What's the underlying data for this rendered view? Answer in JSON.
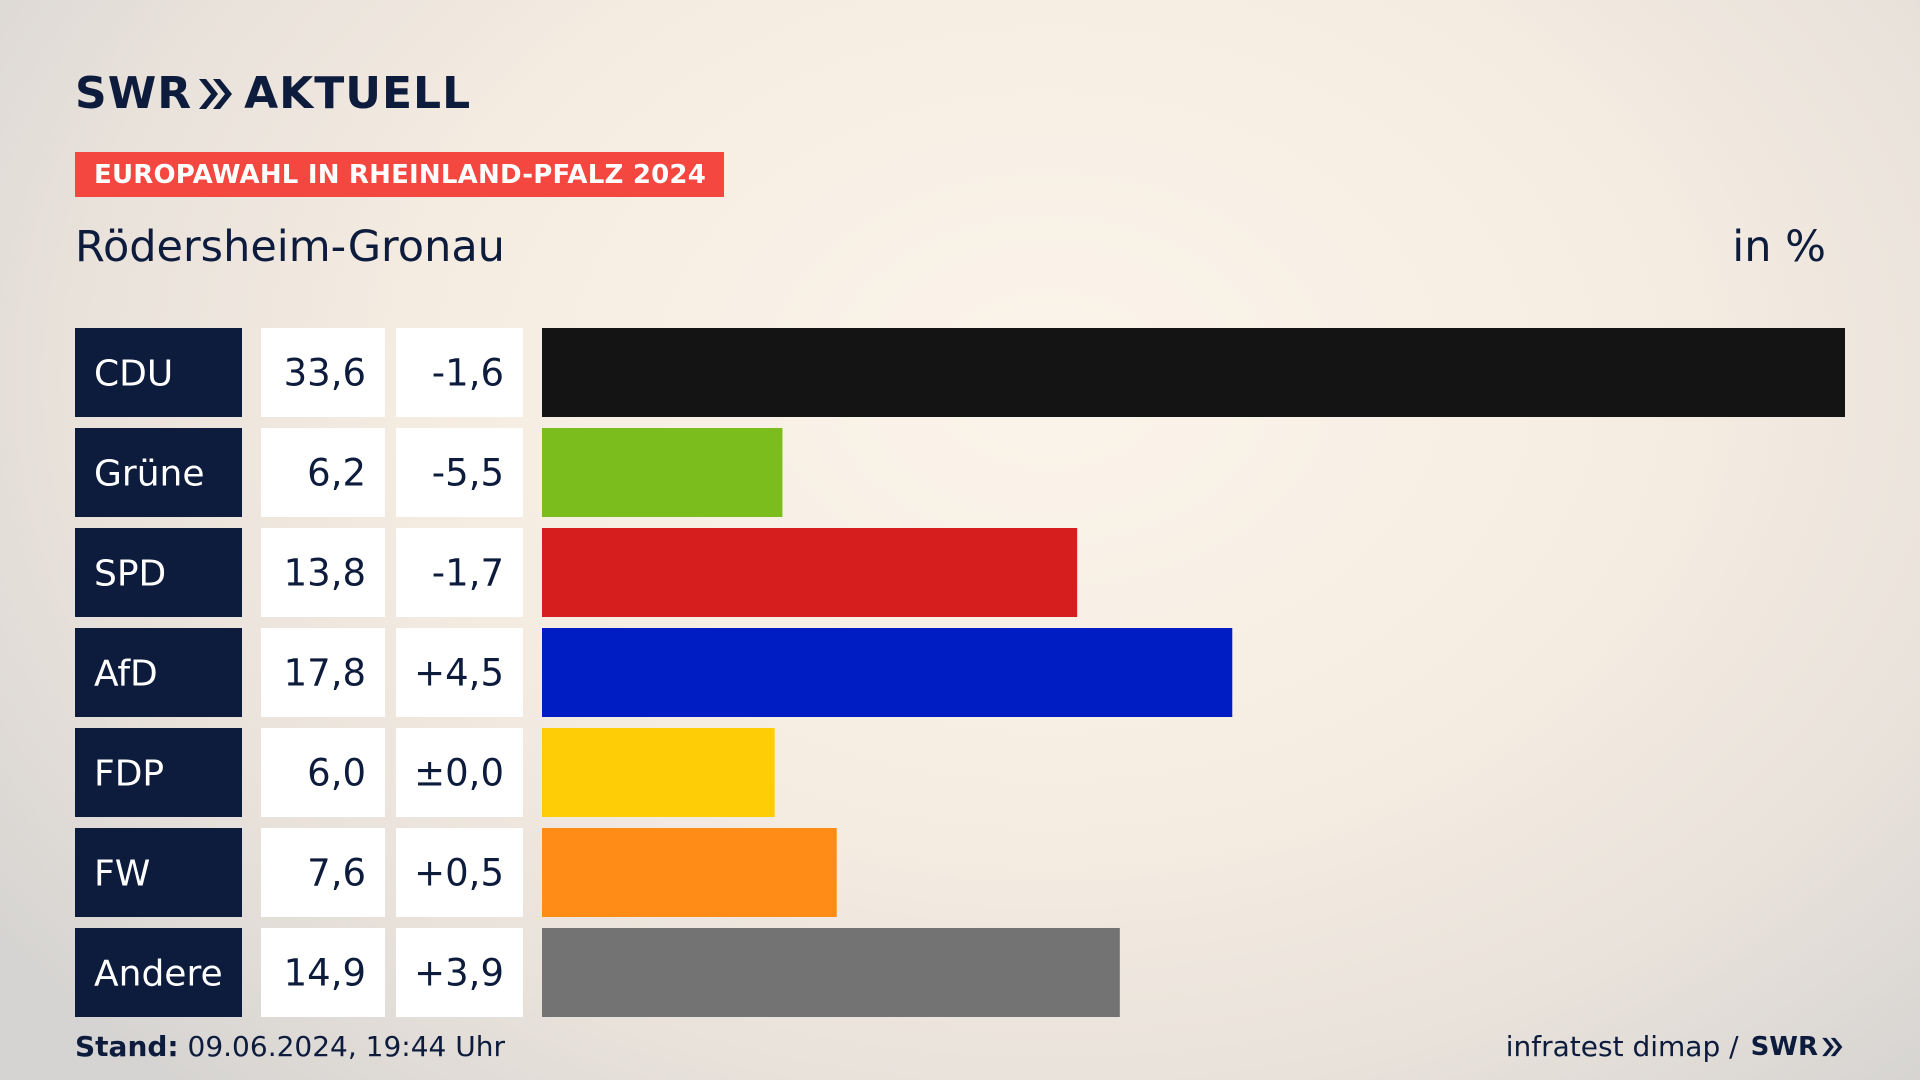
{
  "brand": {
    "swr": "SWR",
    "product": "AKTUELL"
  },
  "banner": "EUROPAWAHL IN RHEINLAND-PFALZ 2024",
  "location": "Rödersheim-Gronau",
  "unit": "in %",
  "footer": {
    "stand_label": "Stand:",
    "stand_value": "09.06.2024, 19:44 Uhr",
    "source": "infratest dimap /",
    "source_brand": "SWR"
  },
  "chart_data": {
    "type": "bar",
    "orientation": "horizontal",
    "categories": [
      "CDU",
      "Grüne",
      "SPD",
      "AfD",
      "FDP",
      "FW",
      "Andere"
    ],
    "values": [
      33.6,
      6.2,
      13.8,
      17.8,
      6.0,
      7.6,
      14.9
    ],
    "value_labels": [
      "33,6",
      "6,2",
      "13,8",
      "17,8",
      "6,0",
      "7,6",
      "14,9"
    ],
    "change_labels": [
      "-1,6",
      "-5,5",
      "-1,7",
      "+4,5",
      "±0,0",
      "+0,5",
      "+3,9"
    ],
    "changes": [
      -1.6,
      -5.5,
      -1.7,
      4.5,
      0.0,
      0.5,
      3.9
    ],
    "colors": [
      "#141414",
      "#7abd1d",
      "#d61e1e",
      "#001dc4",
      "#ffcd05",
      "#ff8c17",
      "#737373"
    ],
    "label_bg": "#0d1c3d",
    "xlim": [
      0,
      33.6
    ],
    "unit": "in %"
  }
}
